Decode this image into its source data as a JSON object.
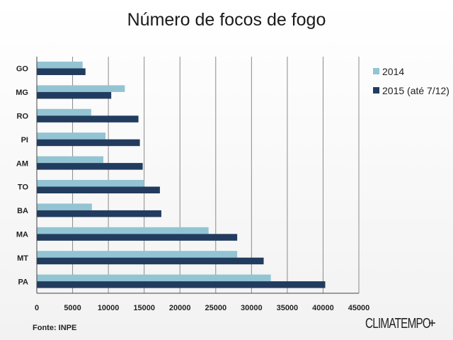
{
  "chart_data": {
    "type": "bar",
    "orientation": "horizontal",
    "title": "Número de focos de fogo",
    "categories": [
      "GO",
      "MG",
      "RO",
      "PI",
      "AM",
      "TO",
      "BA",
      "MA",
      "MT",
      "PA"
    ],
    "series": [
      {
        "name": "2014",
        "color": "#93c4d3",
        "values": [
          6400,
          12300,
          7600,
          9600,
          9300,
          15000,
          7700,
          24000,
          28000,
          32700
        ]
      },
      {
        "name": "2015 (até 7/12)",
        "color": "#213c5e",
        "values": [
          6800,
          10400,
          14200,
          14400,
          14800,
          17200,
          17400,
          28000,
          31700,
          40300
        ]
      }
    ],
    "xlim": [
      0,
      45000
    ],
    "xticks": [
      "0",
      "5000",
      "10000",
      "15000",
      "20000",
      "25000",
      "30000",
      "35000",
      "40000",
      "45000"
    ],
    "grid": true,
    "legend_position": "right"
  },
  "source": "Fonte: INPE",
  "logo": "CLIMATEMPO"
}
